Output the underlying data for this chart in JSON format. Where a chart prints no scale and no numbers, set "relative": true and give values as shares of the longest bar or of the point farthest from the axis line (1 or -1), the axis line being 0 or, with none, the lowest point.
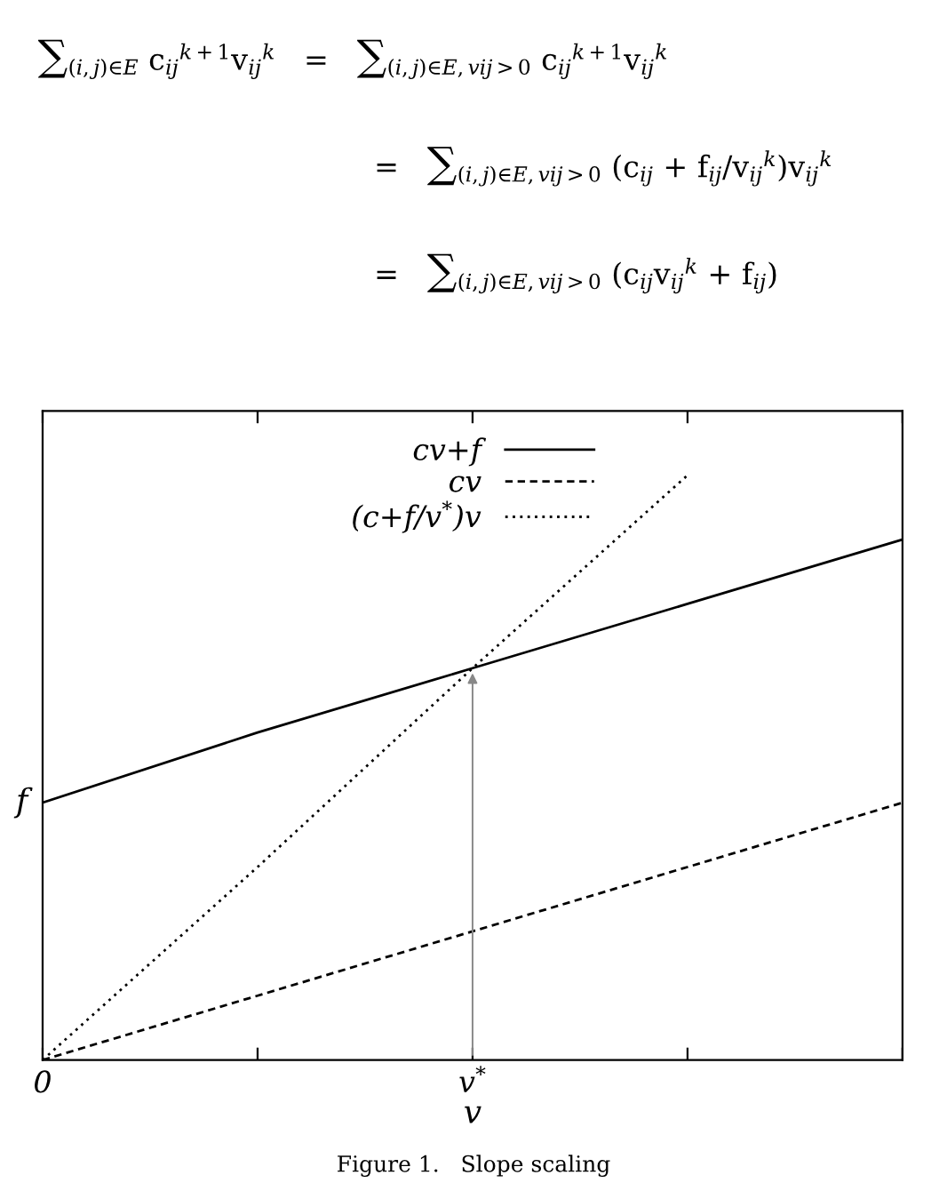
{
  "chart_data": {
    "type": "line",
    "relative": true,
    "annotations": [
      "∑$_{(i,j)∈E}$ c$_{ij}$$^{k+1}$v$_{ij}$$^{k}$   =   ∑$_{(i,j)∈E,vij>0}$ c$_{ij}$$^{k+1}$v$_{ij}$$^{k}$",
      "=   ∑$_{(i,j)∈E,vij>0}$ (c$_{ij}$ + f$_{ij}$/v$_{ij}$$^{k}$)v$_{ij}$$^{k}$",
      "=   ∑$_{(i,j)∈E,vij>0}$ (c$_{ij}$v$_{ij}$$^{k}$ + f$_{ij}$)",
      {
        "text": "f",
        "x": "0",
        "y": 0.44
      },
      "Figure 1.   Slope scaling"
    ],
    "xlabel": "v",
    "categories": [
      "0",
      null,
      "v$^{*}$",
      null,
      null
    ],
    "legend": "top",
    "series": [
      {
        "name": "cv+f",
        "color": "#000000",
        "line_style": "solid",
        "values": [
          0.44,
          0.56,
          0.67,
          0.78,
          0.89
        ]
      },
      {
        "name": "cv",
        "color": "#000000",
        "line_style": "dashed",
        "values": [
          0,
          0.11,
          0.22,
          0.33,
          0.44
        ]
      },
      {
        "name": "(c+f/v$^{*}$)v",
        "color": "#000000",
        "line_style": "dotted",
        "values": [
          0,
          0.33,
          0.67,
          1,
          null
        ]
      }
    ]
  }
}
